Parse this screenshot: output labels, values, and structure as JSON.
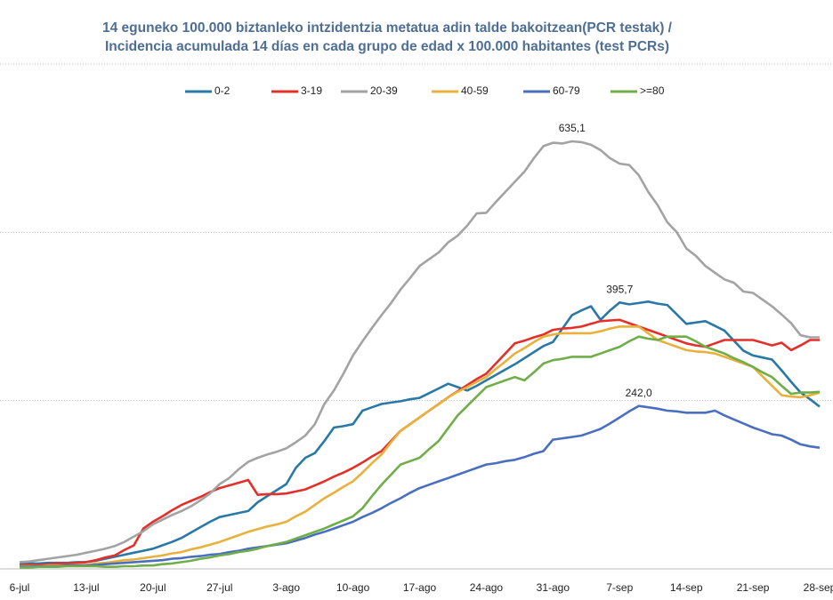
{
  "chart_data": {
    "type": "line",
    "title": [
      "14 eguneko 100.000 biztanleko intzidentzia metatua adin talde bakoitzean(PCR testak) /",
      "Incidencia acumulada 14 días en cada grupo de edad x 100.000 habitantes (test PCRs)"
    ],
    "categories": [
      "6-jul",
      null,
      null,
      null,
      null,
      null,
      null,
      "13-jul",
      null,
      null,
      null,
      null,
      null,
      null,
      "20-jul",
      null,
      null,
      null,
      null,
      null,
      null,
      "27-jul",
      null,
      null,
      null,
      null,
      null,
      null,
      "3-ago",
      null,
      null,
      null,
      null,
      null,
      null,
      "10-ago",
      null,
      null,
      null,
      null,
      null,
      null,
      "17-ago",
      null,
      null,
      null,
      null,
      null,
      null,
      "24-ago",
      null,
      null,
      null,
      null,
      null,
      null,
      "31-ago",
      null,
      null,
      null,
      null,
      null,
      null,
      "7-sep",
      null,
      null,
      null,
      null,
      null,
      null,
      "14-sep",
      null,
      null,
      null,
      null,
      null,
      null,
      "21-sep",
      null,
      null,
      null,
      null,
      null,
      null,
      "28-sep"
    ],
    "ylim": [
      0,
      750
    ],
    "yticks": [
      0,
      250,
      500,
      750
    ],
    "grid": true,
    "legend": "top",
    "series": [
      {
        "name": "0-2",
        "color": "#2a78a6",
        "values": [
          8,
          8,
          8,
          9,
          9,
          9,
          10,
          10,
          12,
          15,
          18,
          21,
          24,
          27,
          30,
          35,
          40,
          46,
          54,
          62,
          70,
          77,
          80,
          83,
          86,
          99,
          108,
          117,
          126,
          150,
          165,
          172,
          190,
          210,
          212,
          215,
          235,
          240,
          245,
          247,
          249,
          252,
          254,
          261,
          268,
          275,
          270,
          265,
          272,
          280,
          288,
          296,
          304,
          313,
          322,
          331,
          337,
          357,
          377,
          384,
          390,
          370,
          384,
          395.7,
          393,
          395,
          397,
          394,
          392,
          378,
          364,
          366,
          368,
          361,
          354,
          339,
          324,
          317,
          314,
          311,
          295,
          278,
          262,
          252,
          241
        ],
        "value_labels": [
          null,
          null,
          null,
          null,
          null,
          null,
          null,
          null,
          null,
          null,
          null,
          null,
          null,
          null,
          null,
          null,
          null,
          null,
          null,
          null,
          null,
          null,
          null,
          null,
          null,
          null,
          null,
          null,
          null,
          null,
          null,
          null,
          null,
          null,
          null,
          null,
          null,
          null,
          null,
          null,
          null,
          null,
          null,
          null,
          null,
          null,
          null,
          null,
          null,
          null,
          null,
          null,
          null,
          null,
          null,
          null,
          null,
          null,
          null,
          null,
          null,
          null,
          null,
          "395,7",
          null,
          null,
          null,
          null,
          null,
          null,
          null,
          null,
          null,
          null,
          null,
          null,
          null,
          null,
          null,
          null,
          null,
          null,
          null,
          null,
          null
        ]
      },
      {
        "name": "3-19",
        "color": "#e3302b",
        "values": [
          5,
          6,
          6,
          7,
          8,
          8,
          9,
          10,
          13,
          17,
          20,
          28,
          35,
          60,
          70,
          78,
          87,
          95,
          101,
          107,
          114,
          120,
          124,
          128,
          132,
          110,
          111,
          111,
          112,
          115,
          118,
          124,
          130,
          137,
          143,
          150,
          158,
          167,
          175,
          190,
          205,
          215,
          225,
          235,
          245,
          255,
          264,
          273,
          282,
          290,
          305,
          320,
          335,
          339,
          344,
          348,
          355,
          357,
          358,
          360,
          364,
          368,
          369,
          370,
          365,
          360,
          355,
          350,
          345,
          340,
          335,
          332,
          330,
          335,
          340,
          340,
          340,
          340,
          336,
          332,
          336,
          325,
          332,
          340,
          340
        ]
      },
      {
        "name": "20-39",
        "color": "#a3a3a3",
        "values": [
          10,
          11,
          13,
          15,
          17,
          19,
          21,
          24,
          27,
          30,
          34,
          40,
          48,
          56,
          66,
          73,
          80,
          86,
          93,
          102,
          112,
          126,
          135,
          148,
          159,
          165,
          170,
          174,
          179,
          188,
          198,
          215,
          245,
          265,
          290,
          317,
          338,
          358,
          377,
          395,
          415,
          432,
          450,
          460,
          470,
          485,
          495,
          510,
          528,
          529,
          545,
          560,
          575,
          590,
          610,
          628,
          633,
          632,
          635.1,
          634,
          630,
          622,
          610,
          602,
          600,
          585,
          560,
          540,
          515,
          500,
          476,
          465,
          450,
          440,
          430,
          425,
          412,
          410,
          400,
          390,
          378,
          365,
          347,
          344,
          344
        ],
        "value_labels": [
          null,
          null,
          null,
          null,
          null,
          null,
          null,
          null,
          null,
          null,
          null,
          null,
          null,
          null,
          null,
          null,
          null,
          null,
          null,
          null,
          null,
          null,
          null,
          null,
          null,
          null,
          null,
          null,
          null,
          null,
          null,
          null,
          null,
          null,
          null,
          null,
          null,
          null,
          null,
          null,
          null,
          null,
          null,
          null,
          null,
          null,
          null,
          null,
          null,
          null,
          null,
          null,
          null,
          null,
          null,
          null,
          null,
          null,
          "635,1",
          null,
          null,
          null,
          null,
          null,
          null,
          null,
          null,
          null,
          null,
          null,
          null,
          null,
          null,
          null,
          null,
          null,
          null,
          null,
          null,
          null,
          null,
          null,
          null,
          null,
          null
        ]
      },
      {
        "name": "40-59",
        "color": "#e9b03c",
        "values": [
          4,
          4,
          4,
          5,
          5,
          5,
          6,
          6,
          8,
          9,
          11,
          13,
          14,
          16,
          18,
          20,
          23,
          25,
          29,
          32,
          36,
          40,
          45,
          50,
          55,
          59,
          63,
          66,
          70,
          78,
          85,
          95,
          105,
          113,
          122,
          130,
          143,
          157,
          170,
          188,
          205,
          215,
          225,
          235,
          245,
          255,
          263,
          270,
          278,
          285,
          297,
          308,
          320,
          328,
          337,
          345,
          348,
          350,
          350,
          350,
          350,
          353,
          357,
          360,
          360,
          360,
          350,
          340,
          335,
          330,
          325,
          323,
          322,
          320,
          315,
          310,
          305,
          300,
          286,
          272,
          258,
          256,
          255,
          258,
          262
        ]
      },
      {
        "name": "60-79",
        "color": "#4a6fbf",
        "values": [
          3,
          3,
          4,
          4,
          4,
          5,
          5,
          5,
          6,
          7,
          8,
          9,
          10,
          11,
          12,
          13,
          15,
          16,
          18,
          19,
          21,
          22,
          25,
          27,
          30,
          32,
          34,
          36,
          38,
          42,
          46,
          51,
          55,
          60,
          65,
          70,
          77,
          83,
          90,
          98,
          105,
          113,
          120,
          125,
          130,
          135,
          140,
          145,
          150,
          155,
          157,
          160,
          162,
          166,
          171,
          175,
          192,
          194,
          196,
          198,
          203,
          208,
          216,
          225,
          234,
          242.0,
          240,
          238,
          235,
          234,
          232,
          232,
          232,
          235,
          228,
          222,
          216,
          210,
          205,
          200,
          198,
          192,
          185,
          182,
          180
        ],
        "value_labels": [
          null,
          null,
          null,
          null,
          null,
          null,
          null,
          null,
          null,
          null,
          null,
          null,
          null,
          null,
          null,
          null,
          null,
          null,
          null,
          null,
          null,
          null,
          null,
          null,
          null,
          null,
          null,
          null,
          null,
          null,
          null,
          null,
          null,
          null,
          null,
          null,
          null,
          null,
          null,
          null,
          null,
          null,
          null,
          null,
          null,
          null,
          null,
          null,
          null,
          null,
          null,
          null,
          null,
          null,
          null,
          null,
          null,
          null,
          null,
          null,
          null,
          null,
          null,
          null,
          null,
          "242,0",
          null,
          null,
          null,
          null,
          null,
          null,
          null,
          null,
          null,
          null,
          null,
          null,
          null,
          null,
          null,
          null,
          null,
          null,
          null
        ]
      },
      {
        "name": ">=80",
        "color": "#6fae48",
        "values": [
          2,
          2,
          3,
          3,
          3,
          4,
          4,
          4,
          4,
          3,
          3,
          4,
          4,
          5,
          5,
          7,
          8,
          10,
          12,
          15,
          17,
          20,
          22,
          25,
          27,
          30,
          34,
          37,
          40,
          45,
          50,
          55,
          60,
          66,
          72,
          78,
          90,
          108,
          125,
          140,
          155,
          160,
          165,
          178,
          190,
          209,
          228,
          242,
          256,
          270,
          275,
          280,
          285,
          280,
          292,
          305,
          310,
          312,
          315,
          315,
          315,
          320,
          325,
          330,
          338,
          345,
          342,
          340,
          345,
          345,
          345,
          338,
          330,
          325,
          320,
          313,
          307,
          300,
          292,
          285,
          272,
          260,
          262,
          262,
          263
        ]
      }
    ]
  }
}
